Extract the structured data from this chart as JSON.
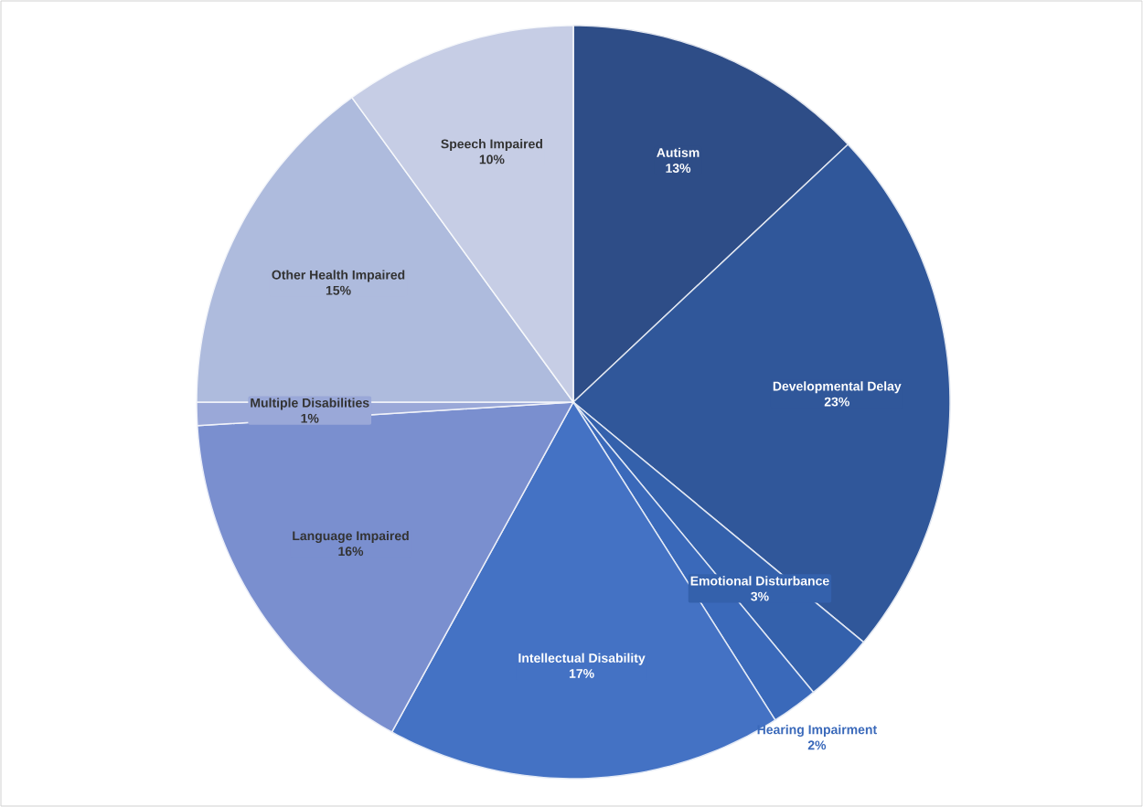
{
  "chart_data": {
    "type": "pie",
    "categories": [
      "Autism",
      "Developmental Delay",
      "Emotional Disturbance",
      "Hearing Impairment",
      "Intellectual Disability",
      "Language Impaired",
      "Multiple Disabilities",
      "Other Health Impaired",
      "Speech Impaired"
    ],
    "values": [
      13,
      23,
      3,
      2,
      17,
      16,
      1,
      15,
      10
    ],
    "value_labels": [
      "13%",
      "23%",
      "3%",
      "2%",
      "17%",
      "16%",
      "1%",
      "15%",
      "10%"
    ],
    "colors": [
      "#2e4d87",
      "#30579a",
      "#3461ac",
      "#3a69ba",
      "#4472c4",
      "#7a8fcf",
      "#9aa8d8",
      "#aebbdd",
      "#c6cde5"
    ]
  }
}
